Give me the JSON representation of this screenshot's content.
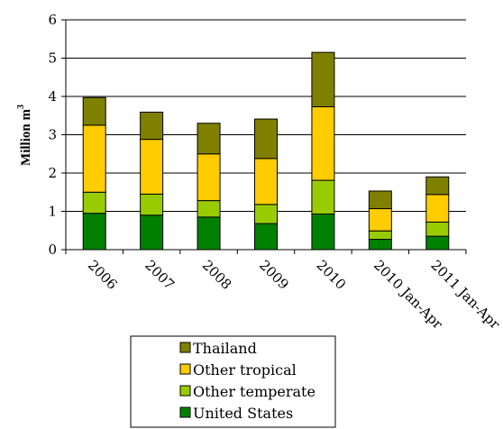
{
  "chart_data": {
    "type": "bar",
    "stacked": true,
    "categories": [
      "2006",
      "2007",
      "2008",
      "2009",
      "2010",
      "2010 Jan-Apr",
      "2011 Jan-Apr"
    ],
    "series": [
      {
        "name": "United States",
        "color": "#008000",
        "values": [
          0.95,
          0.9,
          0.85,
          0.68,
          0.93,
          0.27,
          0.35
        ]
      },
      {
        "name": "Other temperate",
        "color": "#99cc00",
        "values": [
          0.55,
          0.55,
          0.43,
          0.5,
          0.88,
          0.22,
          0.37
        ]
      },
      {
        "name": "Other tropical",
        "color": "#ffcc00",
        "values": [
          1.75,
          1.43,
          1.22,
          1.2,
          1.92,
          0.58,
          0.72
        ]
      },
      {
        "name": "Thailand",
        "color": "#808000",
        "values": [
          0.72,
          0.71,
          0.8,
          1.03,
          1.42,
          0.46,
          0.46
        ]
      }
    ],
    "ylabel": "Million m",
    "ylabel_superscript": "3",
    "yticks": [
      "0",
      "1",
      "2",
      "3",
      "4",
      "5",
      "6"
    ],
    "ylim": [
      0,
      6
    ],
    "legend_order": [
      "Thailand",
      "Other tropical",
      "Other temperate",
      "United States"
    ],
    "legend_placement": "bottom"
  }
}
